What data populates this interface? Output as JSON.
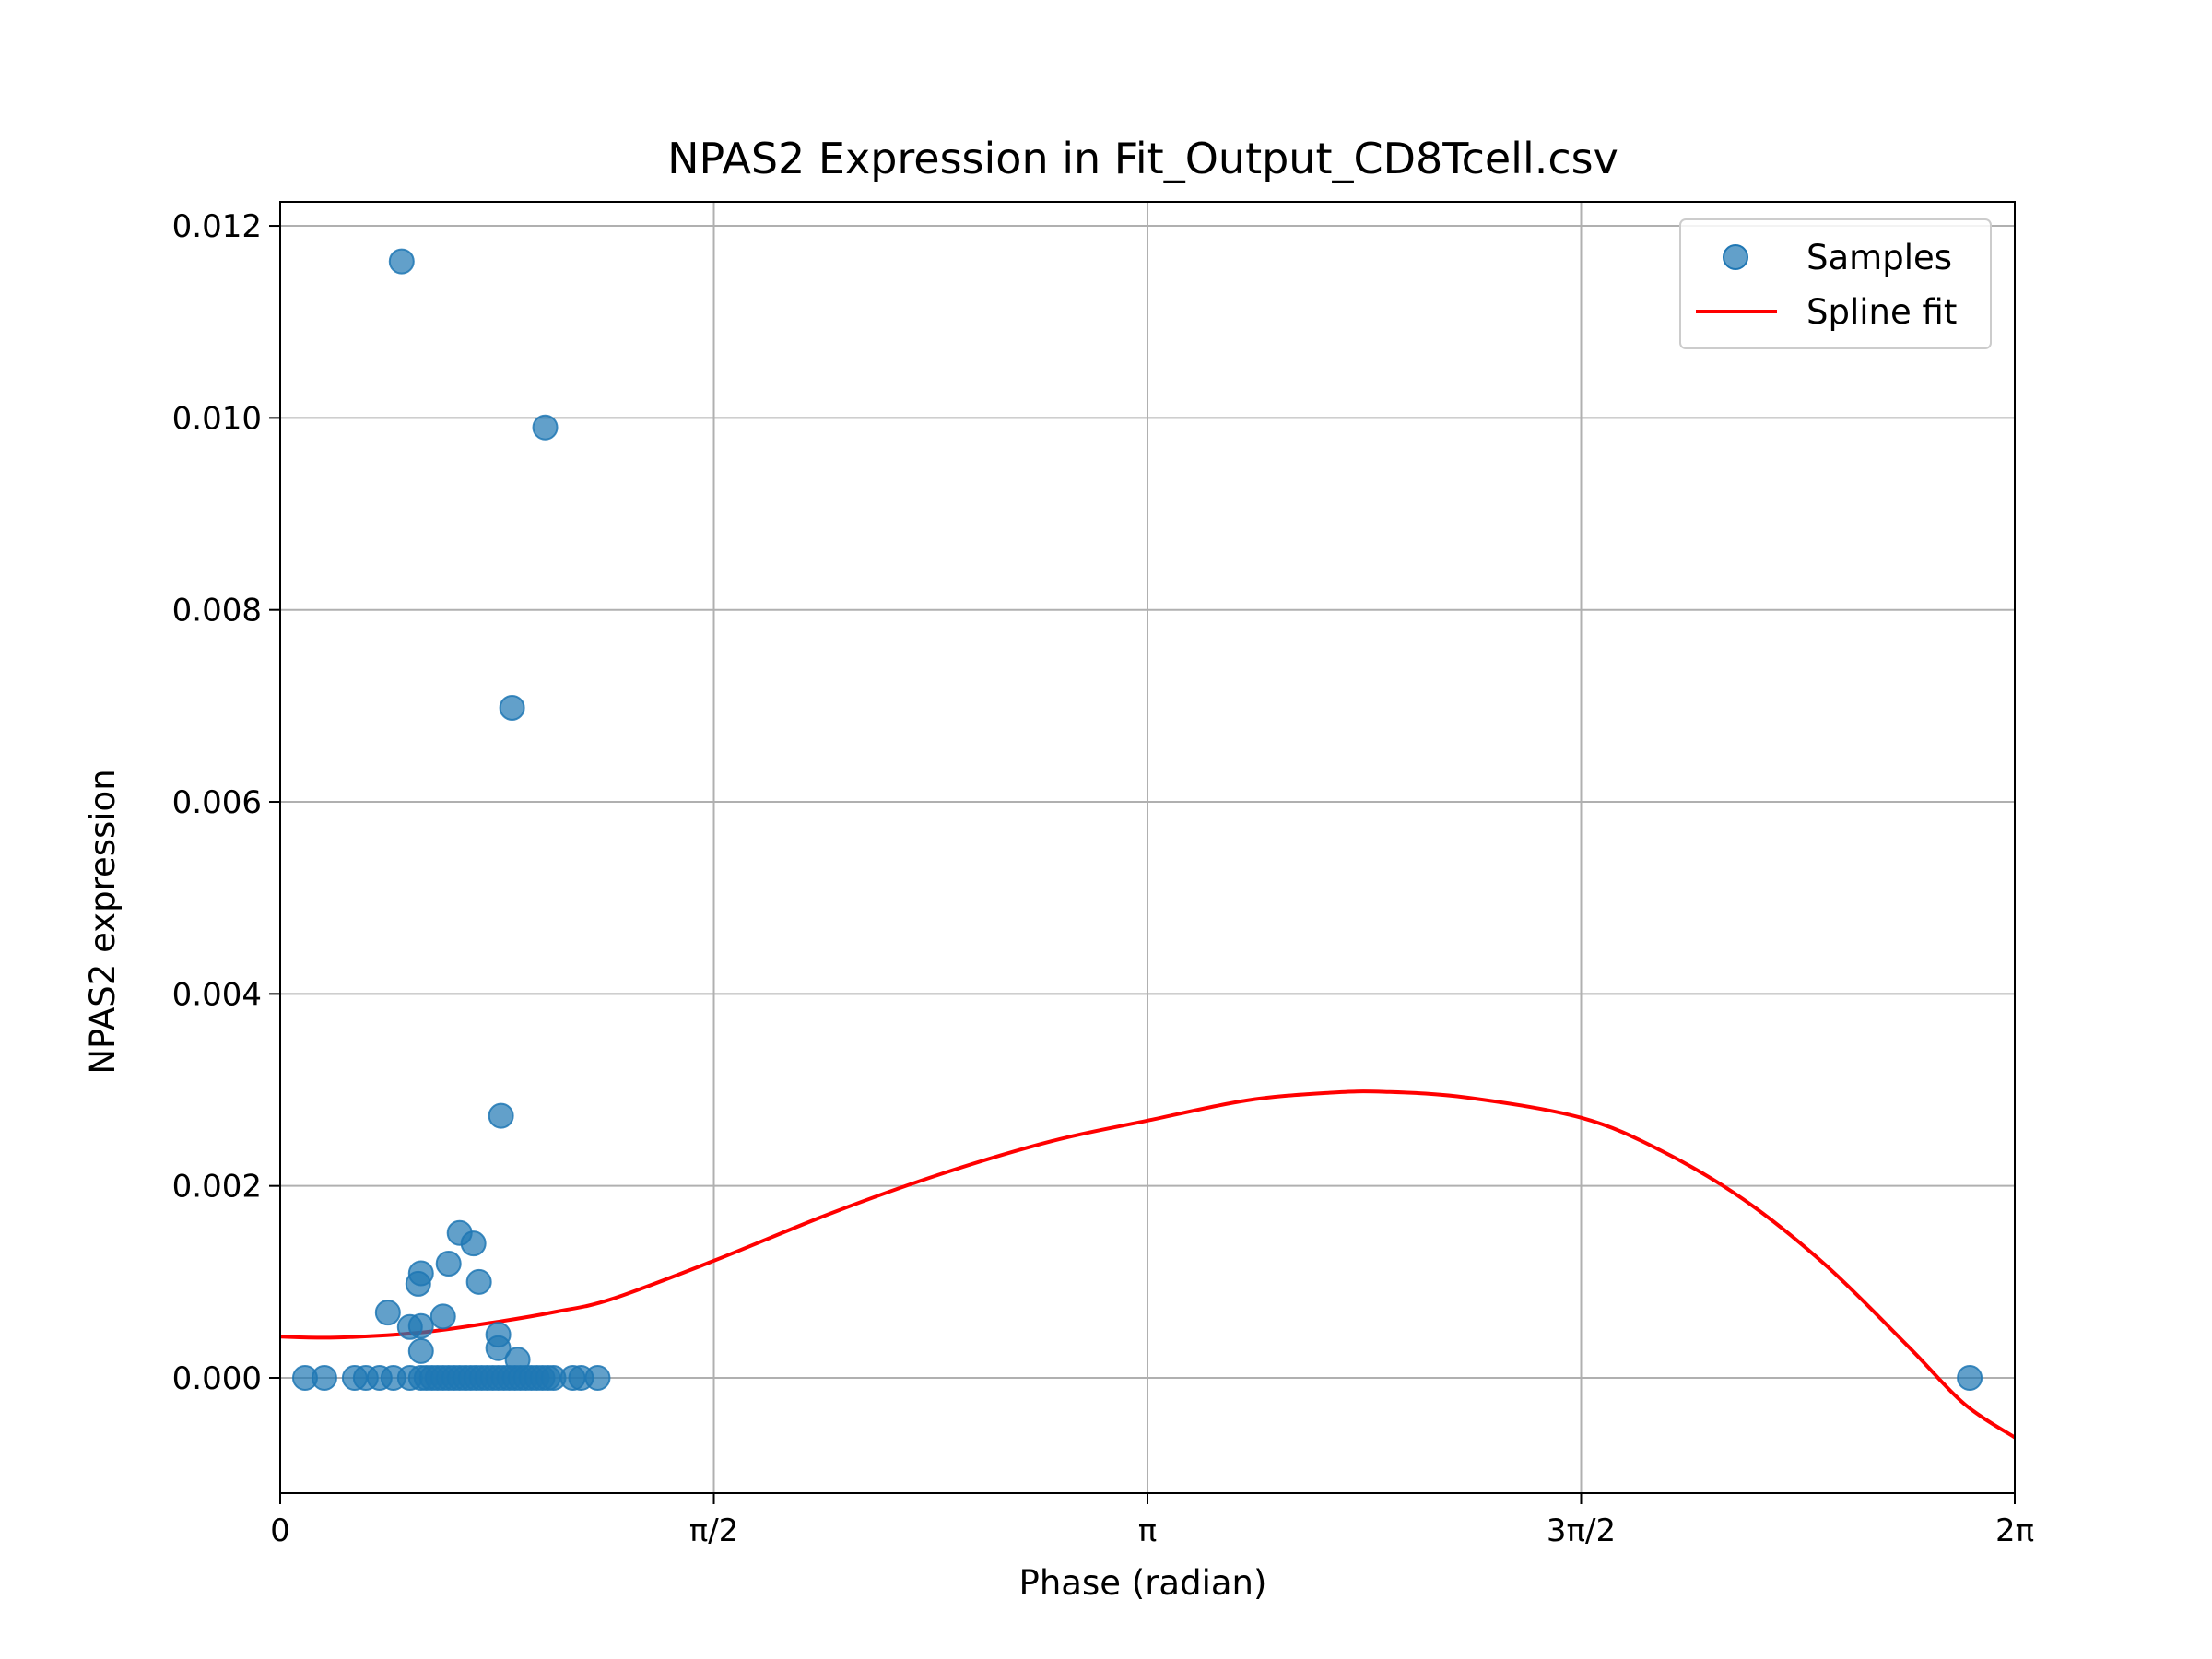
{
  "chart_data": {
    "type": "scatter",
    "title": "NPAS2 Expression in Fit_Output_CD8Tcell.csv",
    "xlabel": "Phase (radian)",
    "ylabel": "NPAS2 expression",
    "xlim": [
      0,
      6.2832
    ],
    "ylim": [
      -0.0012,
      0.01225
    ],
    "x_ticks": [
      {
        "value": 0,
        "label": "0"
      },
      {
        "value": 1.5708,
        "label": "π/2"
      },
      {
        "value": 3.1416,
        "label": "π"
      },
      {
        "value": 4.7124,
        "label": "3π/2"
      },
      {
        "value": 6.2832,
        "label": "2π"
      }
    ],
    "y_ticks": [
      {
        "value": 0.0,
        "label": "0.000"
      },
      {
        "value": 0.002,
        "label": "0.002"
      },
      {
        "value": 0.004,
        "label": "0.004"
      },
      {
        "value": 0.006,
        "label": "0.006"
      },
      {
        "value": 0.008,
        "label": "0.008"
      },
      {
        "value": 0.01,
        "label": "0.010"
      },
      {
        "value": 0.012,
        "label": "0.012"
      }
    ],
    "grid": true,
    "legend_position": "top-right",
    "series": [
      {
        "name": "Samples",
        "kind": "scatter",
        "color": "#1f77b4",
        "points": [
          [
            0.44,
            0.01163
          ],
          [
            0.96,
            0.0099
          ],
          [
            0.84,
            0.00698
          ],
          [
            0.8,
            0.00273
          ],
          [
            0.65,
            0.00151
          ],
          [
            0.7,
            0.0014
          ],
          [
            0.61,
            0.00119
          ],
          [
            0.51,
            0.00109
          ],
          [
            0.5,
            0.00098
          ],
          [
            0.72,
            0.001
          ],
          [
            0.39,
            0.00068
          ],
          [
            0.59,
            0.00064
          ],
          [
            0.47,
            0.00053
          ],
          [
            0.51,
            0.00054
          ],
          [
            0.79,
            0.00045
          ],
          [
            0.79,
            0.00031
          ],
          [
            0.51,
            0.00028
          ],
          [
            0.86,
            0.00019
          ],
          [
            0.09,
            0.0
          ],
          [
            0.16,
            0.0
          ],
          [
            0.27,
            0.0
          ],
          [
            0.31,
            0.0
          ],
          [
            0.36,
            0.0
          ],
          [
            0.41,
            0.0
          ],
          [
            0.47,
            0.0
          ],
          [
            0.51,
            0.0
          ],
          [
            0.53,
            0.0
          ],
          [
            0.55,
            0.0
          ],
          [
            0.57,
            0.0
          ],
          [
            0.59,
            0.0
          ],
          [
            0.61,
            0.0
          ],
          [
            0.63,
            0.0
          ],
          [
            0.65,
            0.0
          ],
          [
            0.67,
            0.0
          ],
          [
            0.69,
            0.0
          ],
          [
            0.71,
            0.0
          ],
          [
            0.73,
            0.0
          ],
          [
            0.75,
            0.0
          ],
          [
            0.77,
            0.0
          ],
          [
            0.79,
            0.0
          ],
          [
            0.81,
            0.0
          ],
          [
            0.83,
            0.0
          ],
          [
            0.85,
            0.0
          ],
          [
            0.87,
            0.0
          ],
          [
            0.89,
            0.0
          ],
          [
            0.91,
            0.0
          ],
          [
            0.93,
            0.0
          ],
          [
            0.95,
            0.0
          ],
          [
            0.97,
            0.0
          ],
          [
            0.99,
            0.0
          ],
          [
            1.06,
            0.0
          ],
          [
            1.09,
            0.0
          ],
          [
            1.15,
            0.0
          ],
          [
            6.12,
            0.0
          ]
        ]
      },
      {
        "name": "Spline fit",
        "kind": "line",
        "color": "#ff0000",
        "points": [
          [
            0.0,
            0.00043
          ],
          [
            0.2,
            0.00042
          ],
          [
            0.5,
            0.00047
          ],
          [
            0.8,
            0.00059
          ],
          [
            1.0,
            0.00069
          ],
          [
            1.2,
            0.00082
          ],
          [
            1.5708,
            0.00122
          ],
          [
            2.0,
            0.00172
          ],
          [
            2.4,
            0.00213
          ],
          [
            2.8,
            0.00247
          ],
          [
            3.1416,
            0.00268
          ],
          [
            3.5,
            0.00289
          ],
          [
            3.8,
            0.00297
          ],
          [
            4.0,
            0.00298
          ],
          [
            4.3,
            0.00292
          ],
          [
            4.7124,
            0.00271
          ],
          [
            5.0,
            0.00237
          ],
          [
            5.3,
            0.00186
          ],
          [
            5.6,
            0.00117
          ],
          [
            5.9,
            0.00032
          ],
          [
            6.1,
            -0.00027
          ],
          [
            6.2832,
            -0.00062
          ]
        ]
      }
    ]
  }
}
